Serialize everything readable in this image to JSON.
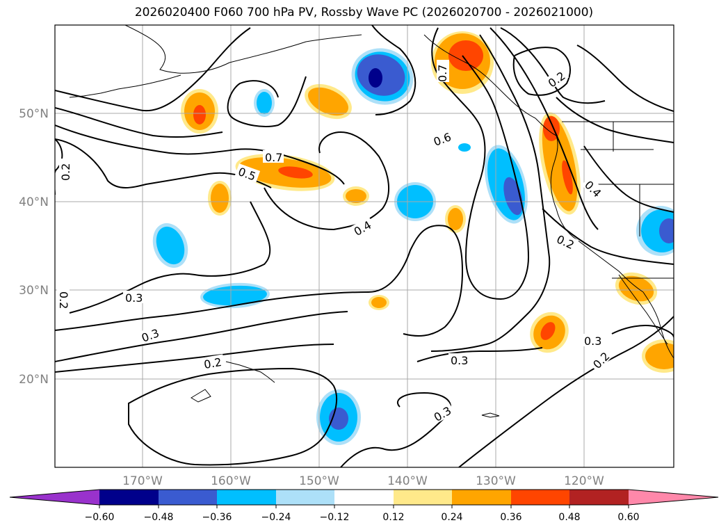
{
  "title": "2026020400 F060 700 hPa PV, Rossby Wave PC (2026020700 - 2026021000)",
  "colors": {
    "neg_060_plus": "#9932CC",
    "neg_048_060": "#00008B",
    "neg_036_048": "#3A5BD0",
    "neg_024_036": "#00BFFF",
    "neg_012_024": "#ADE0F8",
    "pos_012_024": "#FFE98A",
    "pos_024_036": "#FFA500",
    "pos_036_048": "#FF4500",
    "pos_048_060": "#B22222",
    "pos_060_plus": "#FF88AA"
  },
  "map": {
    "lon_labels": [
      "170°W",
      "160°W",
      "150°W",
      "140°W",
      "130°W",
      "120°W"
    ],
    "lat_labels": [
      "50°N",
      "40°N",
      "30°N",
      "20°N"
    ],
    "contour_labels": [
      "0.7",
      "0.5",
      "0.6",
      "0.4",
      "0.3",
      "0.3",
      "0.2",
      "0.2",
      "0.2",
      "0.3",
      "0.3",
      "0.2",
      "0.3",
      "0.2",
      "0.4",
      "0.2",
      "0.7"
    ]
  },
  "colorbar": {
    "tick_labels": [
      "−0.60",
      "−0.48",
      "−0.36",
      "−0.24",
      "−0.12",
      "0.12",
      "0.24",
      "0.36",
      "0.48",
      "0.60"
    ],
    "colors": [
      "#00008B",
      "#3A5BD0",
      "#00BFFF",
      "#ADE0F8",
      "#FFFFFF",
      "#FFE98A",
      "#FFA500",
      "#FF4500",
      "#B22222"
    ]
  }
}
